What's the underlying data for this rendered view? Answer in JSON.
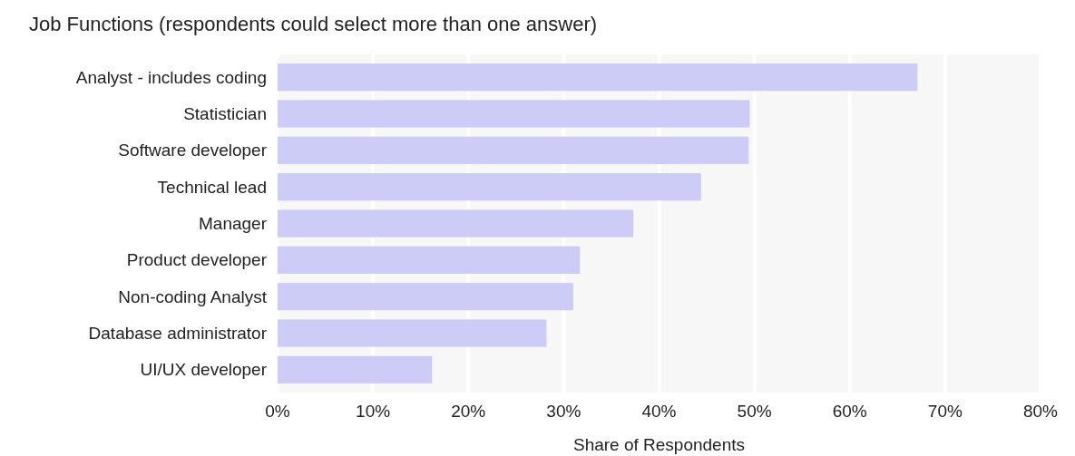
{
  "chart_data": {
    "type": "bar",
    "orientation": "horizontal",
    "title": "Job Functions (respondents could select more than one answer)",
    "xlabel": "Share of Respondents",
    "categories": [
      "Analyst - includes coding",
      "Statistician",
      "Software developer",
      "Technical lead",
      "Manager",
      "Product developer",
      "Non-coding Analyst",
      "Database administrator",
      "UI/UX developer"
    ],
    "values": [
      67.1,
      49.5,
      49.4,
      44.4,
      37.3,
      31.7,
      31.0,
      28.2,
      16.2
    ],
    "color": "#ccccf7",
    "xlim": [
      0,
      80
    ],
    "xticks": [
      {
        "value": 0,
        "label": "0%"
      },
      {
        "value": 10,
        "label": "10%"
      },
      {
        "value": 20,
        "label": "20%"
      },
      {
        "value": 30,
        "label": "30%"
      },
      {
        "value": 40,
        "label": "40%"
      },
      {
        "value": 50,
        "label": "50%"
      },
      {
        "value": 60,
        "label": "60%"
      },
      {
        "value": 70,
        "label": "70%"
      },
      {
        "value": 80,
        "label": "80%"
      }
    ],
    "grid": "x"
  }
}
